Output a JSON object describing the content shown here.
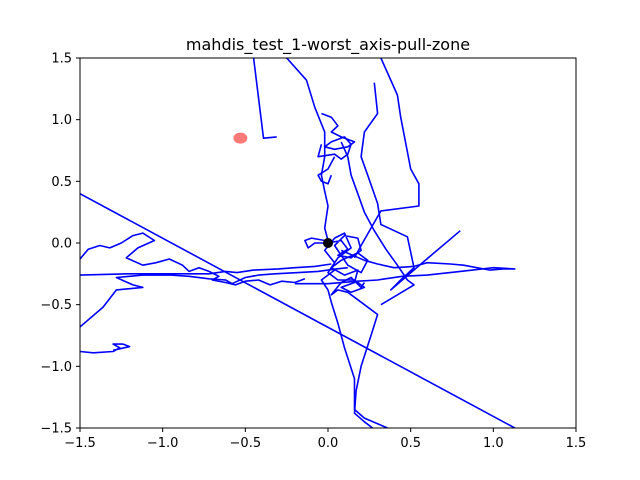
{
  "chart_data": {
    "type": "line",
    "title": "mahdis_test_1-worst_axis-pull-zone",
    "xlabel": "",
    "ylabel": "",
    "xlim": [
      -1.5,
      1.5
    ],
    "ylim": [
      -1.5,
      1.5
    ],
    "xticks": [
      -1.5,
      -1.0,
      -0.5,
      0.0,
      0.5,
      1.0,
      1.5
    ],
    "yticks": [
      -1.5,
      -1.0,
      -0.5,
      0.0,
      0.5,
      1.0,
      1.5
    ],
    "xtick_labels": [
      "−1.5",
      "−1.0",
      "−0.5",
      "0.0",
      "0.5",
      "1.0",
      "1.5"
    ],
    "ytick_labels": [
      "−1.5",
      "−1.0",
      "−0.5",
      "0.0",
      "0.5",
      "1.0",
      "1.5"
    ],
    "grid": false,
    "colors": {
      "path": "#0000ff",
      "target": "#ff4040",
      "origin": "#000000"
    },
    "series": [
      {
        "kind": "path",
        "color": "#0000ff",
        "points": [
          [
            -1.5,
            0.4
          ],
          [
            1.13,
            -1.5
          ]
        ]
      },
      {
        "kind": "path",
        "color": "#0000ff",
        "points": [
          [
            -0.45,
            1.5
          ],
          [
            -0.39,
            0.85
          ],
          [
            -0.31,
            0.86
          ]
        ]
      },
      {
        "kind": "path",
        "color": "#0000ff",
        "points": [
          [
            -1.5,
            -0.68
          ],
          [
            -1.36,
            -0.52
          ],
          [
            -1.28,
            -0.38
          ],
          [
            -1.12,
            -0.36
          ],
          [
            -1.18,
            -0.34
          ],
          [
            -1.28,
            -0.28
          ],
          [
            -1.12,
            -0.26
          ],
          [
            -0.95,
            -0.26
          ],
          [
            -0.84,
            -0.27
          ],
          [
            -0.72,
            -0.29
          ],
          [
            -0.62,
            -0.3
          ],
          [
            -0.58,
            -0.33
          ],
          [
            -0.5,
            -0.28
          ],
          [
            -0.42,
            -0.26
          ],
          [
            -0.32,
            -0.25
          ],
          [
            -0.18,
            -0.24
          ],
          [
            -0.06,
            -0.23
          ],
          [
            0.05,
            -0.21
          ],
          [
            0.12,
            -0.2
          ]
        ]
      },
      {
        "kind": "path",
        "color": "#0000ff",
        "points": [
          [
            -1.5,
            -0.26
          ],
          [
            -1.2,
            -0.25
          ],
          [
            -0.96,
            -0.25
          ],
          [
            -0.72,
            -0.25
          ],
          [
            -0.62,
            -0.23
          ],
          [
            -0.55,
            -0.24
          ],
          [
            -0.45,
            -0.22
          ],
          [
            -0.3,
            -0.21
          ],
          [
            -0.2,
            -0.2
          ],
          [
            -0.08,
            -0.19
          ],
          [
            0.02,
            -0.17
          ]
        ]
      },
      {
        "kind": "path",
        "color": "#0000ff",
        "points": [
          [
            -1.5,
            -0.13
          ],
          [
            -1.45,
            -0.05
          ],
          [
            -1.38,
            -0.02
          ],
          [
            -1.32,
            -0.04
          ],
          [
            -1.25,
            0.0
          ],
          [
            -1.18,
            0.06
          ],
          [
            -1.12,
            0.08
          ],
          [
            -1.05,
            0.02
          ],
          [
            -1.15,
            -0.04
          ],
          [
            -1.22,
            -0.12
          ],
          [
            -1.12,
            -0.18
          ],
          [
            -1.04,
            -0.16
          ],
          [
            -0.96,
            -0.13
          ],
          [
            -0.88,
            -0.18
          ],
          [
            -0.84,
            -0.23
          ],
          [
            -0.78,
            -0.2
          ],
          [
            -0.72,
            -0.23
          ],
          [
            -0.66,
            -0.27
          ],
          [
            -0.7,
            -0.3
          ],
          [
            -0.62,
            -0.32
          ],
          [
            -0.56,
            -0.34
          ],
          [
            -0.5,
            -0.31
          ],
          [
            -0.42,
            -0.3
          ],
          [
            -0.35,
            -0.34
          ],
          [
            -0.28,
            -0.31
          ],
          [
            -0.2,
            -0.32
          ],
          [
            -0.14,
            -0.29
          ]
        ]
      },
      {
        "kind": "path",
        "color": "#0000ff",
        "points": [
          [
            -1.5,
            -0.88
          ],
          [
            -1.42,
            -0.89
          ],
          [
            -1.3,
            -0.88
          ],
          [
            -1.26,
            -0.85
          ],
          [
            -1.3,
            -0.82
          ],
          [
            -1.24,
            -0.82
          ],
          [
            -1.2,
            -0.84
          ],
          [
            -1.3,
            -0.87
          ]
        ]
      },
      {
        "kind": "path",
        "color": "#0000ff",
        "points": [
          [
            -0.2,
            -0.33
          ],
          [
            0.0,
            -0.33
          ],
          [
            0.18,
            -0.31
          ],
          [
            0.3,
            -0.3
          ],
          [
            0.45,
            -0.27
          ],
          [
            0.6,
            -0.26
          ],
          [
            0.8,
            -0.23
          ],
          [
            1.0,
            -0.2
          ],
          [
            1.13,
            -0.21
          ],
          [
            1.06,
            -0.21
          ],
          [
            0.98,
            -0.22
          ],
          [
            0.82,
            -0.18
          ],
          [
            0.74,
            -0.17
          ],
          [
            0.6,
            -0.16
          ],
          [
            0.52,
            -0.19
          ],
          [
            0.4,
            -0.2
          ],
          [
            0.3,
            -0.17
          ],
          [
            0.22,
            -0.14
          ],
          [
            0.15,
            -0.1
          ],
          [
            0.08,
            -0.06
          ]
        ]
      },
      {
        "kind": "path",
        "color": "#0000ff",
        "points": [
          [
            0.27,
            -1.5
          ],
          [
            0.22,
            -1.45
          ],
          [
            0.16,
            -1.38
          ],
          [
            0.17,
            -1.2
          ],
          [
            0.2,
            -1.0
          ],
          [
            0.26,
            -0.75
          ],
          [
            0.3,
            -0.58
          ],
          [
            0.2,
            -0.48
          ],
          [
            0.12,
            -0.4
          ],
          [
            0.06,
            -0.38
          ],
          [
            0.02,
            -0.42
          ],
          [
            0.08,
            -0.32
          ],
          [
            0.14,
            -0.28
          ],
          [
            0.2,
            -0.36
          ],
          [
            0.22,
            -0.32
          ]
        ]
      },
      {
        "kind": "path",
        "color": "#0000ff",
        "points": [
          [
            0.36,
            -1.5
          ],
          [
            0.22,
            -1.42
          ],
          [
            0.16,
            -1.35
          ],
          [
            0.16,
            -1.1
          ],
          [
            0.1,
            -0.85
          ],
          [
            0.06,
            -0.65
          ],
          [
            0.02,
            -0.48
          ],
          [
            0.0,
            -0.38
          ],
          [
            -0.04,
            -0.3
          ],
          [
            0.04,
            -0.22
          ]
        ]
      },
      {
        "kind": "path",
        "color": "#0000ff",
        "points": [
          [
            0.0,
            0.0
          ],
          [
            0.08,
            0.02
          ],
          [
            0.12,
            -0.05
          ],
          [
            0.06,
            -0.1
          ],
          [
            0.14,
            -0.12
          ],
          [
            0.2,
            -0.06
          ],
          [
            0.18,
            0.04
          ],
          [
            0.1,
            0.06
          ],
          [
            0.04,
            -0.02
          ],
          [
            0.12,
            -0.18
          ],
          [
            0.2,
            -0.24
          ],
          [
            0.24,
            -0.14
          ],
          [
            0.18,
            -0.08
          ],
          [
            0.08,
            -0.14
          ],
          [
            0.02,
            -0.2
          ],
          [
            0.1,
            -0.26
          ],
          [
            0.18,
            -0.22
          ],
          [
            0.16,
            -0.32
          ],
          [
            0.08,
            -0.36
          ],
          [
            0.14,
            -0.4
          ],
          [
            0.22,
            -0.36
          ],
          [
            0.16,
            -0.3
          ],
          [
            0.06,
            -0.3
          ],
          [
            0.0,
            -0.24
          ],
          [
            0.06,
            -0.12
          ],
          [
            0.14,
            -0.04
          ],
          [
            0.1,
            0.08
          ],
          [
            0.04,
            0.04
          ],
          [
            -0.02,
            -0.06
          ],
          [
            0.04,
            -0.16
          ]
        ]
      },
      {
        "kind": "path",
        "color": "#0000ff",
        "points": [
          [
            0.32,
            1.5
          ],
          [
            0.42,
            1.2
          ],
          [
            0.44,
            1.02
          ],
          [
            0.5,
            0.6
          ],
          [
            0.55,
            0.48
          ],
          [
            0.55,
            0.3
          ],
          [
            0.32,
            0.26
          ],
          [
            0.2,
            -0.02
          ],
          [
            0.16,
            -0.12
          ]
        ]
      },
      {
        "kind": "path",
        "color": "#0000ff",
        "points": [
          [
            0.28,
            1.3
          ],
          [
            0.3,
            1.05
          ],
          [
            0.22,
            0.9
          ],
          [
            0.2,
            0.7
          ],
          [
            0.24,
            0.55
          ],
          [
            0.3,
            0.32
          ],
          [
            0.32,
            0.15
          ],
          [
            0.48,
            0.05
          ],
          [
            0.52,
            -0.2
          ],
          [
            0.44,
            -0.3
          ],
          [
            0.38,
            -0.38
          ],
          [
            0.58,
            -0.15
          ],
          [
            0.8,
            0.1
          ]
        ]
      },
      {
        "kind": "path",
        "color": "#0000ff",
        "points": [
          [
            -0.25,
            1.5
          ],
          [
            -0.13,
            1.32
          ],
          [
            -0.08,
            1.1
          ],
          [
            -0.02,
            0.9
          ],
          [
            -0.02,
            0.7
          ],
          [
            -0.04,
            0.55
          ],
          [
            -0.02,
            0.42
          ],
          [
            0.0,
            0.3
          ],
          [
            -0.02,
            0.12
          ],
          [
            0.0,
            0.02
          ]
        ]
      },
      {
        "kind": "path",
        "color": "#0000ff",
        "points": [
          [
            -0.04,
            1.05
          ],
          [
            0.02,
            1.02
          ],
          [
            0.06,
            0.95
          ],
          [
            0.02,
            0.9
          ],
          [
            0.08,
            0.86
          ],
          [
            0.16,
            0.82
          ],
          [
            0.12,
            0.78
          ],
          [
            0.04,
            0.76
          ],
          [
            -0.02,
            0.78
          ],
          [
            0.02,
            0.82
          ],
          [
            0.1,
            0.86
          ],
          [
            0.14,
            0.8
          ],
          [
            0.12,
            0.72
          ],
          [
            0.08,
            0.68
          ],
          [
            0.04,
            0.72
          ],
          [
            -0.06,
            0.7
          ],
          [
            -0.04,
            0.8
          ]
        ]
      },
      {
        "kind": "path",
        "color": "#0000ff",
        "points": [
          [
            0.08,
            0.82
          ],
          [
            0.12,
            0.7
          ],
          [
            0.14,
            0.55
          ],
          [
            0.18,
            0.4
          ],
          [
            0.22,
            0.25
          ],
          [
            0.28,
            0.1
          ],
          [
            0.35,
            -0.05
          ],
          [
            0.42,
            -0.18
          ],
          [
            0.48,
            -0.3
          ],
          [
            0.52,
            -0.34
          ],
          [
            0.32,
            -0.5
          ]
        ]
      },
      {
        "kind": "path",
        "color": "#0000ff",
        "points": [
          [
            0.04,
            0.7
          ],
          [
            0.0,
            0.6
          ],
          [
            -0.06,
            0.55
          ],
          [
            -0.04,
            0.5
          ],
          [
            0.0,
            0.48
          ],
          [
            0.02,
            0.55
          ]
        ]
      },
      {
        "kind": "path",
        "color": "#0000ff",
        "points": [
          [
            0.0,
            0.0
          ],
          [
            -0.08,
            0.0
          ],
          [
            -0.12,
            -0.04
          ],
          [
            -0.14,
            0.02
          ],
          [
            -0.1,
            0.04
          ],
          [
            -0.02,
            0.02
          ]
        ]
      }
    ],
    "markers": [
      {
        "name": "target",
        "x": -0.53,
        "y": 0.85,
        "color": "#ff4040",
        "alpha": 0.7
      },
      {
        "name": "origin",
        "x": 0.0,
        "y": 0.0,
        "color": "#000000",
        "alpha": 1.0
      }
    ]
  }
}
